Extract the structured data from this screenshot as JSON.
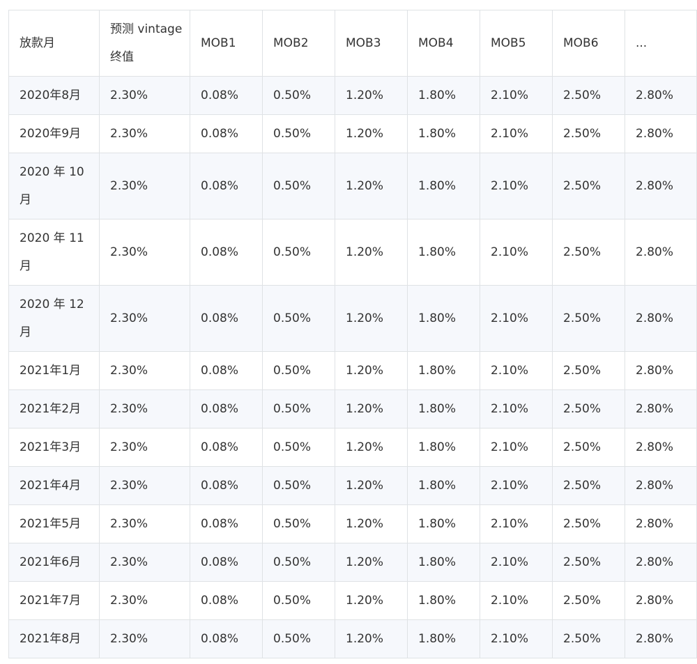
{
  "table": {
    "headers": [
      "放款月",
      "预测 vintage终值",
      "MOB1",
      "MOB2",
      "MOB3",
      "MOB4",
      "MOB5",
      "MOB6",
      "..."
    ],
    "rows": [
      {
        "month": "2020年8月",
        "cells": [
          "2.30%",
          "0.08%",
          "0.50%",
          "1.20%",
          "1.80%",
          "2.10%",
          "2.50%",
          "2.80%"
        ]
      },
      {
        "month": "2020年9月",
        "cells": [
          "2.30%",
          "0.08%",
          "0.50%",
          "1.20%",
          "1.80%",
          "2.10%",
          "2.50%",
          "2.80%"
        ]
      },
      {
        "month": "2020 年 10 月",
        "cells": [
          "2.30%",
          "0.08%",
          "0.50%",
          "1.20%",
          "1.80%",
          "2.10%",
          "2.50%",
          "2.80%"
        ]
      },
      {
        "month": "2020 年 11 月",
        "cells": [
          "2.30%",
          "0.08%",
          "0.50%",
          "1.20%",
          "1.80%",
          "2.10%",
          "2.50%",
          "2.80%"
        ]
      },
      {
        "month": "2020 年 12 月",
        "cells": [
          "2.30%",
          "0.08%",
          "0.50%",
          "1.20%",
          "1.80%",
          "2.10%",
          "2.50%",
          "2.80%"
        ]
      },
      {
        "month": "2021年1月",
        "cells": [
          "2.30%",
          "0.08%",
          "0.50%",
          "1.20%",
          "1.80%",
          "2.10%",
          "2.50%",
          "2.80%"
        ]
      },
      {
        "month": "2021年2月",
        "cells": [
          "2.30%",
          "0.08%",
          "0.50%",
          "1.20%",
          "1.80%",
          "2.10%",
          "2.50%",
          "2.80%"
        ]
      },
      {
        "month": "2021年3月",
        "cells": [
          "2.30%",
          "0.08%",
          "0.50%",
          "1.20%",
          "1.80%",
          "2.10%",
          "2.50%",
          "2.80%"
        ]
      },
      {
        "month": "2021年4月",
        "cells": [
          "2.30%",
          "0.08%",
          "0.50%",
          "1.20%",
          "1.80%",
          "2.10%",
          "2.50%",
          "2.80%"
        ]
      },
      {
        "month": "2021年5月",
        "cells": [
          "2.30%",
          "0.08%",
          "0.50%",
          "1.20%",
          "1.80%",
          "2.10%",
          "2.50%",
          "2.80%"
        ]
      },
      {
        "month": "2021年6月",
        "cells": [
          "2.30%",
          "0.08%",
          "0.50%",
          "1.20%",
          "1.80%",
          "2.10%",
          "2.50%",
          "2.80%"
        ]
      },
      {
        "month": "2021年7月",
        "cells": [
          "2.30%",
          "0.08%",
          "0.50%",
          "1.20%",
          "1.80%",
          "2.10%",
          "2.50%",
          "2.80%"
        ]
      },
      {
        "month": "2021年8月",
        "cells": [
          "2.30%",
          "0.08%",
          "0.50%",
          "1.20%",
          "1.80%",
          "2.10%",
          "2.50%",
          "2.80%"
        ]
      }
    ]
  }
}
